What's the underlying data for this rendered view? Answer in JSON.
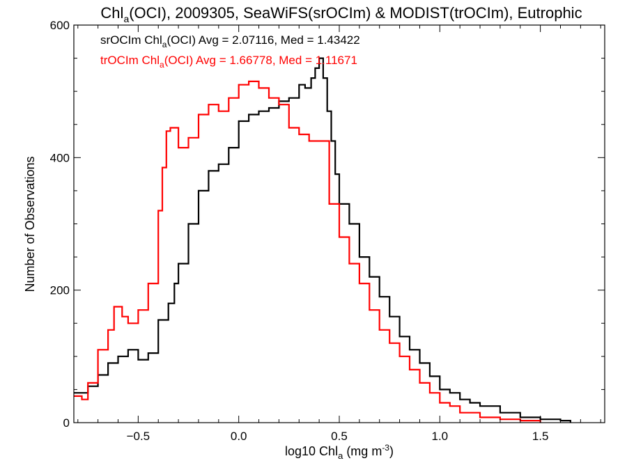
{
  "chart_data": {
    "type": "line",
    "title": {
      "pre": "Chl",
      "sub": "a",
      "post": "(OCI), 2009305, SeaWiFS(srOCIm) & MODIST(trOCIm), Eutrophic"
    },
    "xlabel": {
      "pre": "log10 Chl",
      "sub": "a",
      "mid": " (mg m",
      "sup": "-3",
      "post": ")"
    },
    "ylabel": "Number of Observations",
    "xlim": [
      -0.82,
      1.82
    ],
    "ylim": [
      0,
      600
    ],
    "x_ticks": [
      {
        "value": -0.5,
        "label": "−0.5"
      },
      {
        "value": 0.0,
        "label": "0.0"
      },
      {
        "value": 0.5,
        "label": "0.5"
      },
      {
        "value": 1.0,
        "label": "1.0"
      },
      {
        "value": 1.5,
        "label": "1.5"
      }
    ],
    "y_ticks": [
      {
        "value": 0,
        "label": "0"
      },
      {
        "value": 200,
        "label": "200"
      },
      {
        "value": 400,
        "label": "400"
      },
      {
        "value": 600,
        "label": "600"
      }
    ],
    "series": [
      {
        "name": "srOCIm",
        "color": "#000000",
        "stats": {
          "pre": "srOCIm Chl",
          "sub": "a",
          "post": "(OCI) Avg = 2.07116, Med = 1.43422"
        },
        "x": [
          -0.82,
          -0.75,
          -0.7,
          -0.65,
          -0.6,
          -0.55,
          -0.5,
          -0.45,
          -0.4,
          -0.35,
          -0.32,
          -0.3,
          -0.25,
          -0.2,
          -0.15,
          -0.1,
          -0.05,
          0.0,
          0.05,
          0.1,
          0.15,
          0.2,
          0.25,
          0.3,
          0.33,
          0.36,
          0.38,
          0.4,
          0.42,
          0.44,
          0.46,
          0.48,
          0.5,
          0.55,
          0.6,
          0.65,
          0.7,
          0.75,
          0.8,
          0.85,
          0.9,
          0.95,
          1.0,
          1.05,
          1.1,
          1.15,
          1.2,
          1.3,
          1.4,
          1.5,
          1.6,
          1.65
        ],
        "y": [
          45,
          55,
          72,
          90,
          100,
          110,
          95,
          105,
          155,
          180,
          210,
          240,
          300,
          350,
          380,
          390,
          415,
          455,
          465,
          470,
          475,
          485,
          490,
          510,
          505,
          520,
          535,
          550,
          520,
          470,
          425,
          375,
          330,
          300,
          250,
          220,
          190,
          160,
          130,
          110,
          90,
          70,
          50,
          45,
          35,
          30,
          25,
          15,
          8,
          5,
          3,
          0
        ]
      },
      {
        "name": "trOCIm",
        "color": "#ff0000",
        "stats": {
          "pre": "trOCIm Chl",
          "sub": "a",
          "post": "(OCI) Avg = 1.66778, Med = 1.11671"
        },
        "x": [
          -0.82,
          -0.78,
          -0.75,
          -0.7,
          -0.65,
          -0.62,
          -0.58,
          -0.55,
          -0.5,
          -0.45,
          -0.4,
          -0.38,
          -0.36,
          -0.34,
          -0.3,
          -0.25,
          -0.2,
          -0.15,
          -0.1,
          -0.05,
          0.0,
          0.05,
          0.1,
          0.15,
          0.2,
          0.25,
          0.3,
          0.35,
          0.4,
          0.45,
          0.5,
          0.55,
          0.6,
          0.65,
          0.7,
          0.75,
          0.8,
          0.85,
          0.9,
          0.95,
          1.0,
          1.05,
          1.1,
          1.2,
          1.3,
          1.4,
          1.5
        ],
        "y": [
          40,
          35,
          60,
          110,
          140,
          175,
          160,
          150,
          170,
          210,
          320,
          385,
          440,
          445,
          415,
          430,
          465,
          480,
          470,
          490,
          510,
          515,
          505,
          490,
          480,
          445,
          435,
          425,
          425,
          330,
          280,
          240,
          210,
          170,
          140,
          120,
          100,
          80,
          60,
          45,
          30,
          25,
          15,
          8,
          5,
          3,
          0
        ]
      }
    ]
  }
}
